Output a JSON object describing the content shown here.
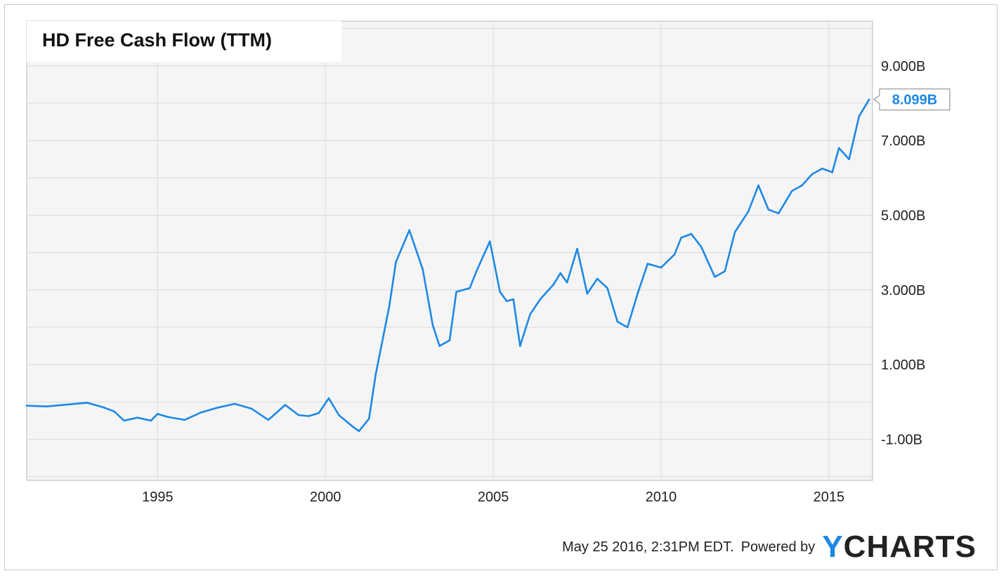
{
  "chart_data": {
    "type": "line",
    "title": "HD Free Cash Flow (TTM)",
    "x_tick_labels": [
      "1995",
      "2000",
      "2005",
      "2010",
      "2015"
    ],
    "x_ticks": [
      1995,
      2000,
      2005,
      2010,
      2015
    ],
    "y_tick_labels": [
      "9.000B",
      "7.000B",
      "5.000B",
      "3.000B",
      "1.000B",
      "-1.00B"
    ],
    "y_ticks": [
      9,
      7,
      5,
      3,
      1,
      -1
    ],
    "xlim": [
      1991.1,
      2016.3
    ],
    "ylim": [
      -2.1,
      10.2
    ],
    "unit": "B",
    "grid": true,
    "line_color": "#1e88e5",
    "last_value_label": "8.099B",
    "series": [
      {
        "x": [
          1991.1,
          1991.7,
          1992.3,
          1992.9,
          1993.4,
          1993.7,
          1994.0,
          1994.4,
          1994.8,
          1995.0,
          1995.3,
          1995.8,
          1996.3,
          1996.8,
          1997.3,
          1997.8,
          1998.3,
          1998.8,
          1999.2,
          1999.5,
          1999.8,
          2000.1,
          2000.4,
          2000.8,
          2001.0,
          2001.3,
          2001.5,
          2001.9,
          2002.1,
          2002.5,
          2002.9,
          2003.2,
          2003.4,
          2003.7,
          2003.9,
          2004.3,
          2004.5,
          2004.9,
          2005.2,
          2005.4,
          2005.6,
          2005.8,
          2006.1,
          2006.4,
          2006.8,
          2007.0,
          2007.2,
          2007.5,
          2007.8,
          2008.1,
          2008.4,
          2008.7,
          2009.0,
          2009.3,
          2009.6,
          2010.0,
          2010.4,
          2010.6,
          2010.9,
          2011.2,
          2011.6,
          2011.9,
          2012.2,
          2012.6,
          2012.9,
          2013.2,
          2013.5,
          2013.9,
          2014.2,
          2014.5,
          2014.8,
          2015.1,
          2015.3,
          2015.6,
          2015.9,
          2016.2
        ],
        "y": [
          -0.1,
          -0.12,
          -0.07,
          -0.02,
          -0.15,
          -0.25,
          -0.5,
          -0.42,
          -0.5,
          -0.32,
          -0.4,
          -0.48,
          -0.28,
          -0.15,
          -0.05,
          -0.18,
          -0.48,
          -0.08,
          -0.35,
          -0.38,
          -0.3,
          0.1,
          -0.35,
          -0.65,
          -0.78,
          -0.45,
          0.75,
          2.55,
          3.75,
          4.6,
          3.55,
          2.05,
          1.5,
          1.65,
          2.95,
          3.05,
          3.5,
          4.3,
          2.95,
          2.7,
          2.75,
          1.5,
          2.35,
          2.75,
          3.15,
          3.45,
          3.2,
          4.1,
          2.9,
          3.3,
          3.05,
          2.15,
          2.0,
          2.9,
          3.7,
          3.6,
          3.95,
          4.4,
          4.5,
          4.15,
          3.35,
          3.5,
          4.55,
          5.1,
          5.8,
          5.15,
          5.05,
          5.65,
          5.8,
          6.1,
          6.25,
          6.15,
          6.8,
          6.5,
          7.65,
          8.1
        ]
      }
    ]
  },
  "footer": {
    "timestamp": "May 25 2016, 2:31PM EDT.",
    "powered_by": "Powered by",
    "brand_y": "Y",
    "brand_rest": "CHARTS"
  }
}
